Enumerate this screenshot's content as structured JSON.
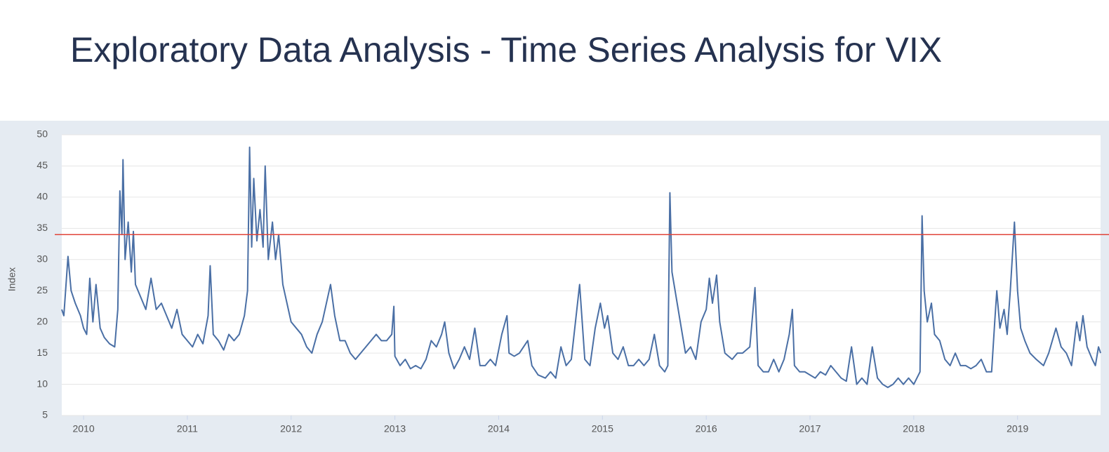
{
  "chart_data": {
    "type": "line",
    "title": "Exploratory Data Analysis - Time Series Analysis for VIX",
    "y_label": "Index",
    "xlim": [
      2009.79,
      2019.8
    ],
    "xticks": [
      2010,
      2011,
      2012,
      2013,
      2014,
      2015,
      2016,
      2017,
      2018,
      2019
    ],
    "ylim": [
      5,
      50
    ],
    "yticks": [
      5,
      10,
      15,
      20,
      25,
      30,
      35,
      40,
      45,
      50
    ],
    "grid": true,
    "reference_line": {
      "value": 34,
      "color": "#e0453a"
    },
    "x": [
      2009.79,
      2009.81,
      2009.85,
      2009.88,
      2009.92,
      2009.97,
      2010.0,
      2010.03,
      2010.06,
      2010.09,
      2010.12,
      2010.16,
      2010.2,
      2010.25,
      2010.3,
      2010.33,
      2010.35,
      2010.37,
      2010.38,
      2010.4,
      2010.43,
      2010.46,
      2010.48,
      2010.5,
      2010.55,
      2010.6,
      2010.65,
      2010.7,
      2010.75,
      2010.8,
      2010.85,
      2010.9,
      2010.95,
      2011.0,
      2011.05,
      2011.1,
      2011.15,
      2011.2,
      2011.22,
      2011.25,
      2011.3,
      2011.35,
      2011.4,
      2011.45,
      2011.5,
      2011.55,
      2011.58,
      2011.6,
      2011.62,
      2011.64,
      2011.67,
      2011.7,
      2011.73,
      2011.75,
      2011.78,
      2011.82,
      2011.85,
      2011.88,
      2011.92,
      2011.96,
      2012.0,
      2012.05,
      2012.1,
      2012.15,
      2012.2,
      2012.25,
      2012.3,
      2012.38,
      2012.42,
      2012.47,
      2012.52,
      2012.57,
      2012.62,
      2012.67,
      2012.72,
      2012.77,
      2012.82,
      2012.87,
      2012.92,
      2012.97,
      2012.99,
      2013.0,
      2013.05,
      2013.1,
      2013.15,
      2013.2,
      2013.25,
      2013.3,
      2013.35,
      2013.4,
      2013.45,
      2013.48,
      2013.52,
      2013.57,
      2013.62,
      2013.67,
      2013.72,
      2013.77,
      2013.82,
      2013.87,
      2013.92,
      2013.97,
      2014.03,
      2014.08,
      2014.1,
      2014.15,
      2014.2,
      2014.28,
      2014.32,
      2014.38,
      2014.45,
      2014.5,
      2014.55,
      2014.6,
      2014.65,
      2014.7,
      2014.78,
      2014.83,
      2014.88,
      2014.93,
      2014.98,
      2015.02,
      2015.05,
      2015.1,
      2015.15,
      2015.2,
      2015.25,
      2015.3,
      2015.35,
      2015.4,
      2015.45,
      2015.5,
      2015.55,
      2015.6,
      2015.63,
      2015.65,
      2015.67,
      2015.7,
      2015.75,
      2015.8,
      2015.85,
      2015.9,
      2015.95,
      2016.0,
      2016.03,
      2016.06,
      2016.1,
      2016.13,
      2016.18,
      2016.25,
      2016.3,
      2016.35,
      2016.42,
      2016.47,
      2016.5,
      2016.55,
      2016.6,
      2016.65,
      2016.7,
      2016.75,
      2016.8,
      2016.83,
      2016.85,
      2016.9,
      2016.95,
      2017.0,
      2017.05,
      2017.1,
      2017.15,
      2017.2,
      2017.25,
      2017.3,
      2017.35,
      2017.4,
      2017.45,
      2017.5,
      2017.55,
      2017.6,
      2017.65,
      2017.7,
      2017.75,
      2017.8,
      2017.85,
      2017.9,
      2017.95,
      2018.0,
      2018.03,
      2018.06,
      2018.08,
      2018.1,
      2018.13,
      2018.17,
      2018.2,
      2018.25,
      2018.3,
      2018.35,
      2018.4,
      2018.45,
      2018.5,
      2018.55,
      2018.6,
      2018.65,
      2018.7,
      2018.75,
      2018.78,
      2018.8,
      2018.83,
      2018.87,
      2018.9,
      2018.93,
      2018.97,
      2019.0,
      2019.03,
      2019.07,
      2019.12,
      2019.18,
      2019.25,
      2019.3,
      2019.37,
      2019.42,
      2019.47,
      2019.52,
      2019.57,
      2019.6,
      2019.63,
      2019.67,
      2019.72,
      2019.75,
      2019.78,
      2019.8
    ],
    "series": [
      {
        "color": "#4a6fa5",
        "values": [
          22,
          21,
          30.5,
          25,
          23,
          21,
          19,
          18,
          27,
          20,
          26,
          19,
          17.5,
          16.5,
          16,
          22,
          41,
          34,
          46,
          30,
          36,
          28,
          34.5,
          26,
          24,
          22,
          27,
          22,
          23,
          21,
          19,
          22,
          18,
          17,
          16,
          18,
          16.5,
          21,
          29,
          18,
          17,
          15.5,
          18,
          17,
          18,
          21,
          25,
          48,
          32,
          43,
          33,
          38,
          32,
          45,
          30,
          36,
          30,
          34,
          26,
          23,
          20,
          19,
          18,
          16,
          15,
          18,
          20,
          26,
          21,
          17,
          17,
          15,
          14,
          15,
          16,
          17,
          18,
          17,
          17,
          18,
          22.5,
          14.5,
          13,
          14,
          12.5,
          13,
          12.5,
          14,
          17,
          16,
          18,
          20,
          15,
          12.5,
          14,
          16,
          14,
          19,
          13,
          13,
          14,
          13,
          18,
          21,
          15,
          14.5,
          15,
          17,
          13,
          11.5,
          11,
          12,
          11,
          16,
          13,
          14,
          26,
          14,
          13,
          19,
          23,
          19,
          21,
          15,
          14,
          16,
          13,
          13,
          14,
          13,
          14,
          18,
          13,
          12,
          13,
          40.7,
          28,
          25,
          20,
          15,
          16,
          14,
          20,
          22,
          27,
          23,
          27.5,
          20,
          15,
          14,
          15,
          15,
          16,
          25.5,
          13,
          12,
          12,
          14,
          12,
          14,
          18,
          22,
          13,
          12,
          12,
          11.5,
          11,
          12,
          11.5,
          13,
          12,
          11,
          10.5,
          16,
          10,
          11,
          10,
          16,
          11,
          10,
          9.5,
          10,
          11,
          10,
          11,
          10,
          11,
          12,
          37,
          25,
          20,
          23,
          18,
          17,
          14,
          13,
          15,
          13,
          13,
          12.5,
          13,
          14,
          12,
          12,
          20,
          25,
          19,
          22,
          18,
          25,
          36,
          25,
          19,
          17,
          15,
          14,
          13,
          15,
          19,
          16,
          15,
          13,
          20,
          17,
          21,
          16,
          14,
          13,
          16,
          15
        ]
      }
    ]
  }
}
